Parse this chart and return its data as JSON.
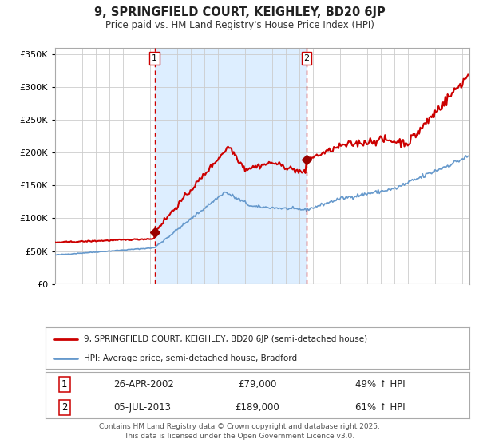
{
  "title": "9, SPRINGFIELD COURT, KEIGHLEY, BD20 6JP",
  "subtitle": "Price paid vs. HM Land Registry's House Price Index (HPI)",
  "legend_line1": "9, SPRINGFIELD COURT, KEIGHLEY, BD20 6JP (semi-detached house)",
  "legend_line2": "HPI: Average price, semi-detached house, Bradford",
  "transaction1": {
    "label": "1",
    "date": "26-APR-2002",
    "price": "£79,000",
    "pct": "49% ↑ HPI"
  },
  "transaction2": {
    "label": "2",
    "date": "05-JUL-2013",
    "price": "£189,000",
    "pct": "61% ↑ HPI"
  },
  "vline1_x": 2002.32,
  "vline2_x": 2013.51,
  "marker1_y": 79000,
  "marker2_y": 189000,
  "hpi_color": "#6699cc",
  "price_color": "#cc0000",
  "marker_color": "#990000",
  "shaded_region_color": "#ddeeff",
  "vline_color": "#cc0000",
  "grid_color": "#cccccc",
  "background_color": "#ffffff",
  "plot_bg_color": "#ffffff",
  "ylim": [
    0,
    360000
  ],
  "xlim_start": 1995.0,
  "xlim_end": 2025.5,
  "footer": "Contains HM Land Registry data © Crown copyright and database right 2025.\nThis data is licensed under the Open Government Licence v3.0.",
  "yticks": [
    0,
    50000,
    100000,
    150000,
    200000,
    250000,
    300000,
    350000
  ],
  "ytick_labels": [
    "£0",
    "£50K",
    "£100K",
    "£150K",
    "£200K",
    "£250K",
    "£300K",
    "£350K"
  ],
  "xticks": [
    1995,
    1996,
    1997,
    1998,
    1999,
    2000,
    2001,
    2002,
    2003,
    2004,
    2005,
    2006,
    2007,
    2008,
    2009,
    2010,
    2011,
    2012,
    2013,
    2014,
    2015,
    2016,
    2017,
    2018,
    2019,
    2020,
    2021,
    2022,
    2023,
    2024,
    2025
  ]
}
